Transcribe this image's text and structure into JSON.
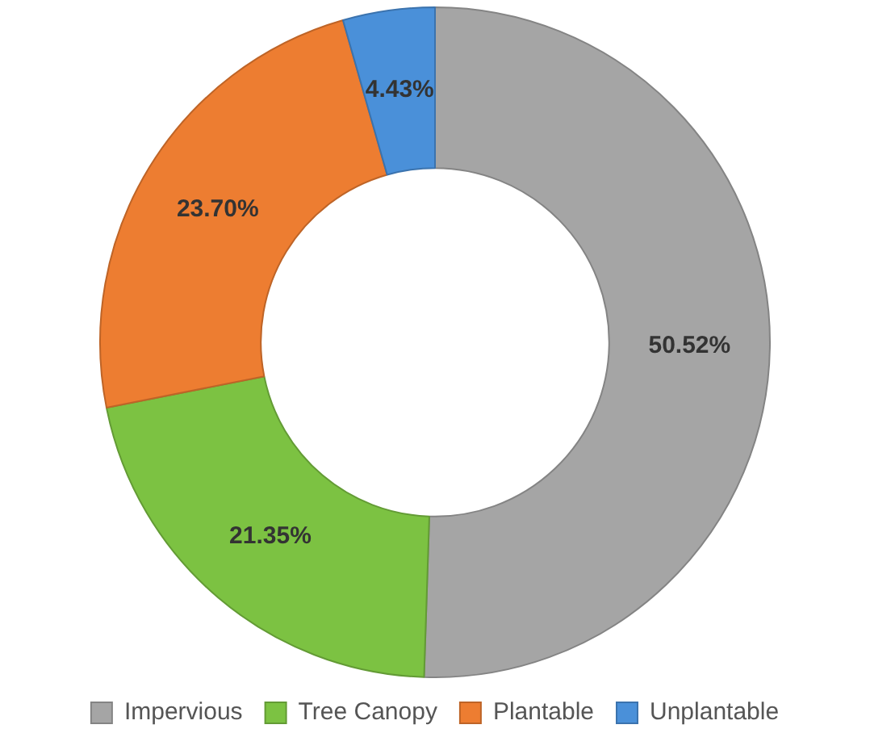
{
  "chart_data": {
    "type": "donut",
    "categories": [
      "Impervious",
      "Tree Canopy",
      "Plantable",
      "Unplantable"
    ],
    "values": [
      50.52,
      21.35,
      23.7,
      4.43
    ],
    "value_labels": [
      "50.52%",
      "21.35%",
      "23.70%",
      "4.43%"
    ],
    "colors": [
      "#a5a5a5",
      "#7cc242",
      "#ed7d31",
      "#4a90d9"
    ],
    "legend": "bottom"
  }
}
